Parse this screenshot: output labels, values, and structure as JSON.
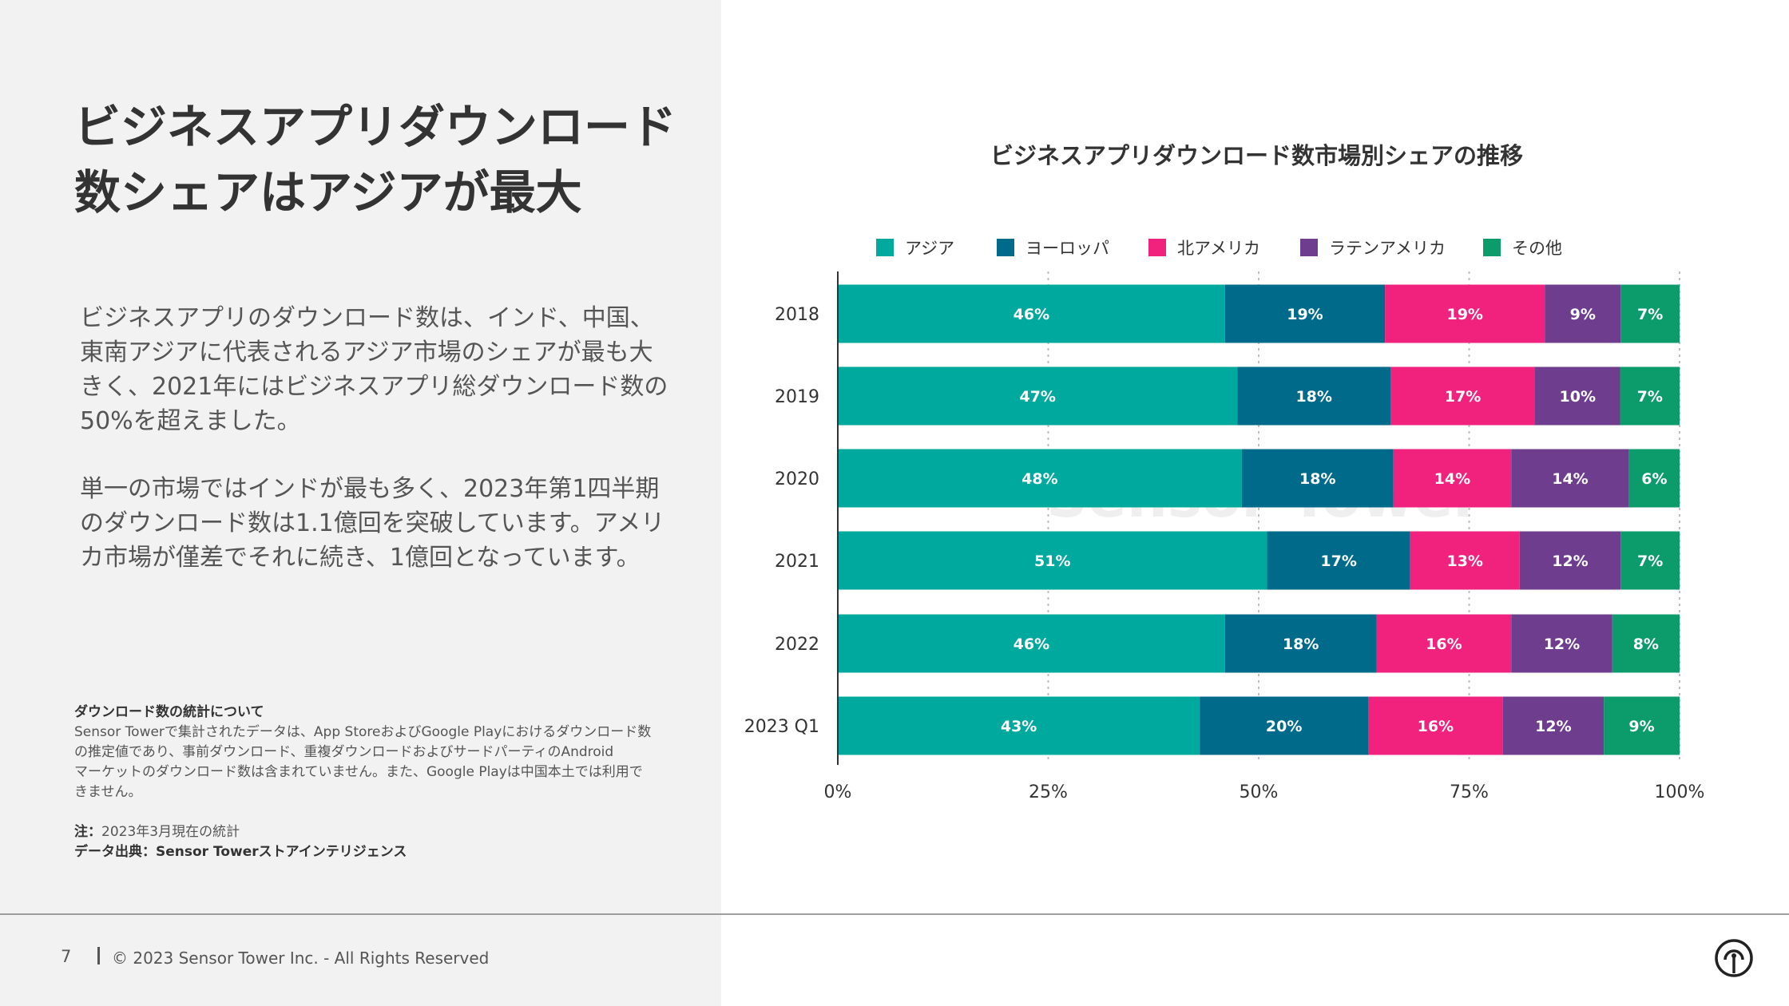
{
  "left": {
    "title_line1": "ビジネスアプリダウンロード",
    "title_line2": "数シェアはアジアが最大",
    "paragraph1_line1": "ビジネスアプリのダウンロード数は、インド、中国、",
    "paragraph1_line2": "東南アジアに代表されるアジア市場のシェアが最も大",
    "paragraph1_line3": "きく、2021年にはビジネスアプリ総ダウンロード数の",
    "paragraph1_line4": "50%を超えました。",
    "paragraph2_line1": "単一の市場ではインドが最も多く、2023年第1四半期",
    "paragraph2_line2": "のダウンロード数は1.1億回を突破しています。アメリ",
    "paragraph2_line3": "カ市場が僅差でそれに続き、1億回となっています。",
    "notes_heading": "ダウンロード数の統計について",
    "notes_line1": "Sensor Towerで集計されたデータは、App StoreおよびGoogle Playにおけるダウンロード数",
    "notes_line2": "の推定値であり、事前ダウンロード、重複ダウンロードおよびサードパーティのAndroid",
    "notes_line3": "マーケットのダウンロード数は含まれていません。また、Google Playは中国本土では利用で",
    "notes_line4": "きません。",
    "note_label": "注：",
    "note_text": "2023年3月現在の統計",
    "source_text": "データ出典：Sensor Towerストアインテリジェンス"
  },
  "footer": {
    "page_number": "7",
    "copyright": "© 2023 Sensor Tower Inc. - All Rights Reserved"
  },
  "watermark": "Sensor Tower",
  "chart_data": {
    "type": "bar",
    "orientation": "horizontal",
    "stacked": true,
    "title": "ビジネスアプリダウンロード数市場別シェアの推移",
    "categories": [
      "2018",
      "2019",
      "2020",
      "2021",
      "2022",
      "2023 Q1"
    ],
    "series": [
      {
        "name": "アジア",
        "color": "#00a99d",
        "values": [
          46,
          47,
          48,
          51,
          46,
          43
        ]
      },
      {
        "name": "ヨーロッパ",
        "color": "#006a8a",
        "values": [
          19,
          18,
          18,
          17,
          18,
          20
        ]
      },
      {
        "name": "北アメリカ",
        "color": "#f0227e",
        "values": [
          19,
          17,
          14,
          13,
          16,
          16
        ]
      },
      {
        "name": "ラテンアメリカ",
        "color": "#6e3d8e",
        "values": [
          9,
          10,
          14,
          12,
          12,
          12
        ]
      },
      {
        "name": "その他",
        "color": "#0c9b6a",
        "values": [
          7,
          7,
          6,
          7,
          8,
          9
        ]
      }
    ],
    "x_ticks": [
      "0%",
      "25%",
      "50%",
      "75%",
      "100%"
    ],
    "xlim": [
      0,
      100
    ],
    "grid": "vertical dotted",
    "legend_position": "top"
  }
}
